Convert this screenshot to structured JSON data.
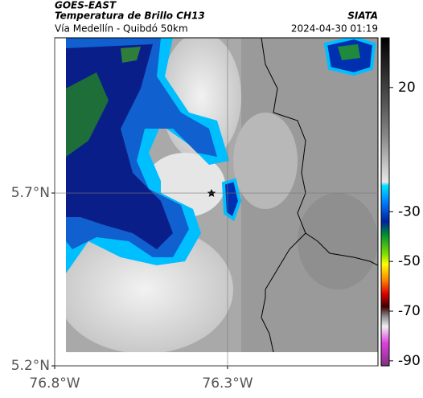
{
  "header": {
    "title": "GOES-EAST",
    "subtitle": "Temperatura de Brillo CH13",
    "route": "Vía Medellín - Quibdó 50km",
    "source": "SIATA",
    "datetime": "2024-04-30 01:19"
  },
  "map": {
    "lonlim": [
      -76.8,
      -75.865
    ],
    "latlim": [
      5.2,
      6.149
    ],
    "lon_ticks": [
      {
        "value": -76.8,
        "label": "76.8°W"
      },
      {
        "value": -76.3,
        "label": "76.3°W"
      }
    ],
    "lat_ticks": [
      {
        "value": 5.2,
        "label": "5.2°N"
      },
      {
        "value": 5.7,
        "label": "5.7°N"
      }
    ],
    "grid": true
  },
  "colorbar": {
    "clim": [
      -92,
      40
    ],
    "ticks": [
      20,
      -30,
      -50,
      -70,
      -90
    ]
  }
}
